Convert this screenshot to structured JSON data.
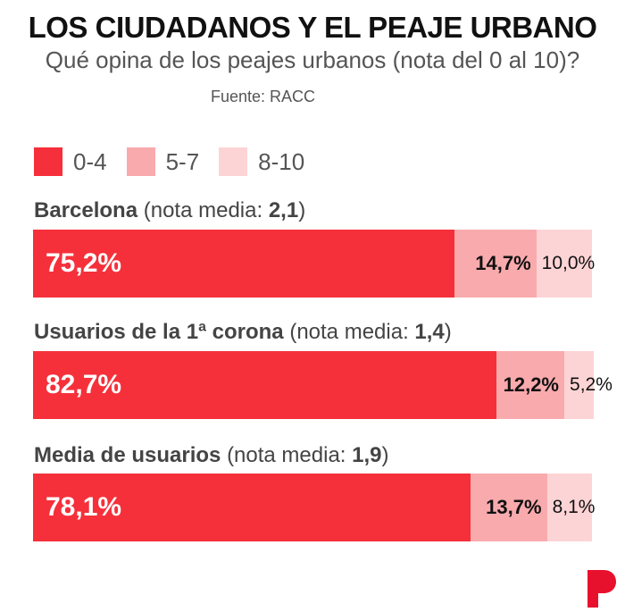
{
  "title": "LOS CIUDADANOS Y EL PEAJE URBANO",
  "subtitle": "Qué opina de los peajes urbanos (nota del 0 al 10)?",
  "source": "Fuente: RACC",
  "logo_icon": "periodico-p-logo",
  "colors": {
    "c0": "#f5303a",
    "c1": "#f9aaad",
    "c2": "#fdd4d6",
    "logo": "#e8112d"
  },
  "chart_data": {
    "type": "bar",
    "stacked": true,
    "orientation": "horizontal",
    "title": "LOS CIUDADANOS Y EL PEAJE URBANO",
    "subtitle": "Qué opina de los peajes urbanos (nota del 0 al 10)?",
    "source": "Fuente: RACC",
    "legend_position": "top-left",
    "legend": [
      "0-4",
      "5-7",
      "8-10"
    ],
    "categories": [
      {
        "name": "Barcelona",
        "mean_label": "(nota media: ",
        "mean": "2,1",
        "close": ")"
      },
      {
        "name": "Usuarios de la 1ª corona",
        "mean_label": "(nota media: ",
        "mean": "1,4",
        "close": ")"
      },
      {
        "name": "Media de usuarios",
        "mean_label": "(nota media: ",
        "mean": "1,9",
        "close": ")"
      }
    ],
    "series": [
      {
        "name": "0-4",
        "values": [
          75.2,
          82.7,
          78.1
        ],
        "labels": [
          "75,2%",
          "82,7%",
          "78,1%"
        ]
      },
      {
        "name": "5-7",
        "values": [
          14.7,
          12.2,
          13.7
        ],
        "labels": [
          "14,7%",
          "12,2%",
          "13,7%"
        ]
      },
      {
        "name": "8-10",
        "values": [
          10.0,
          5.2,
          8.1
        ],
        "labels": [
          "10,0%",
          "5,2%",
          "8,1%"
        ]
      }
    ],
    "xlim": [
      0,
      100
    ]
  }
}
